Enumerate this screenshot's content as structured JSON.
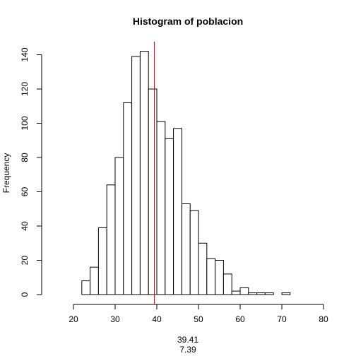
{
  "chart_data": {
    "type": "bar",
    "title": "Histogram of poblacion",
    "xlabel": "",
    "ylabel": "Frequency",
    "xlim": [
      20,
      80
    ],
    "ylim": [
      0,
      145
    ],
    "x_ticks": [
      20,
      30,
      40,
      50,
      60,
      70,
      80
    ],
    "y_ticks": [
      0,
      20,
      40,
      60,
      80,
      100,
      120,
      140
    ],
    "bin_width": 2,
    "bins": [
      {
        "start": 22,
        "end": 24,
        "count": 8
      },
      {
        "start": 24,
        "end": 26,
        "count": 16
      },
      {
        "start": 26,
        "end": 28,
        "count": 39
      },
      {
        "start": 28,
        "end": 30,
        "count": 64
      },
      {
        "start": 30,
        "end": 32,
        "count": 80
      },
      {
        "start": 32,
        "end": 34,
        "count": 112
      },
      {
        "start": 34,
        "end": 36,
        "count": 139
      },
      {
        "start": 36,
        "end": 38,
        "count": 142
      },
      {
        "start": 38,
        "end": 40,
        "count": 120
      },
      {
        "start": 40,
        "end": 42,
        "count": 101
      },
      {
        "start": 42,
        "end": 44,
        "count": 91
      },
      {
        "start": 44,
        "end": 46,
        "count": 97
      },
      {
        "start": 46,
        "end": 48,
        "count": 53
      },
      {
        "start": 48,
        "end": 50,
        "count": 49
      },
      {
        "start": 50,
        "end": 52,
        "count": 30
      },
      {
        "start": 52,
        "end": 54,
        "count": 21
      },
      {
        "start": 54,
        "end": 56,
        "count": 20
      },
      {
        "start": 56,
        "end": 58,
        "count": 12
      },
      {
        "start": 58,
        "end": 60,
        "count": 2
      },
      {
        "start": 60,
        "end": 62,
        "count": 4
      },
      {
        "start": 62,
        "end": 64,
        "count": 1
      },
      {
        "start": 64,
        "end": 66,
        "count": 1
      },
      {
        "start": 66,
        "end": 68,
        "count": 1
      },
      {
        "start": 68,
        "end": 70,
        "count": 0
      },
      {
        "start": 70,
        "end": 72,
        "count": 1
      }
    ],
    "mean_line": {
      "x": 39.41,
      "color": "#ff0000"
    },
    "sub_labels": [
      "39.41",
      "7.39"
    ]
  }
}
